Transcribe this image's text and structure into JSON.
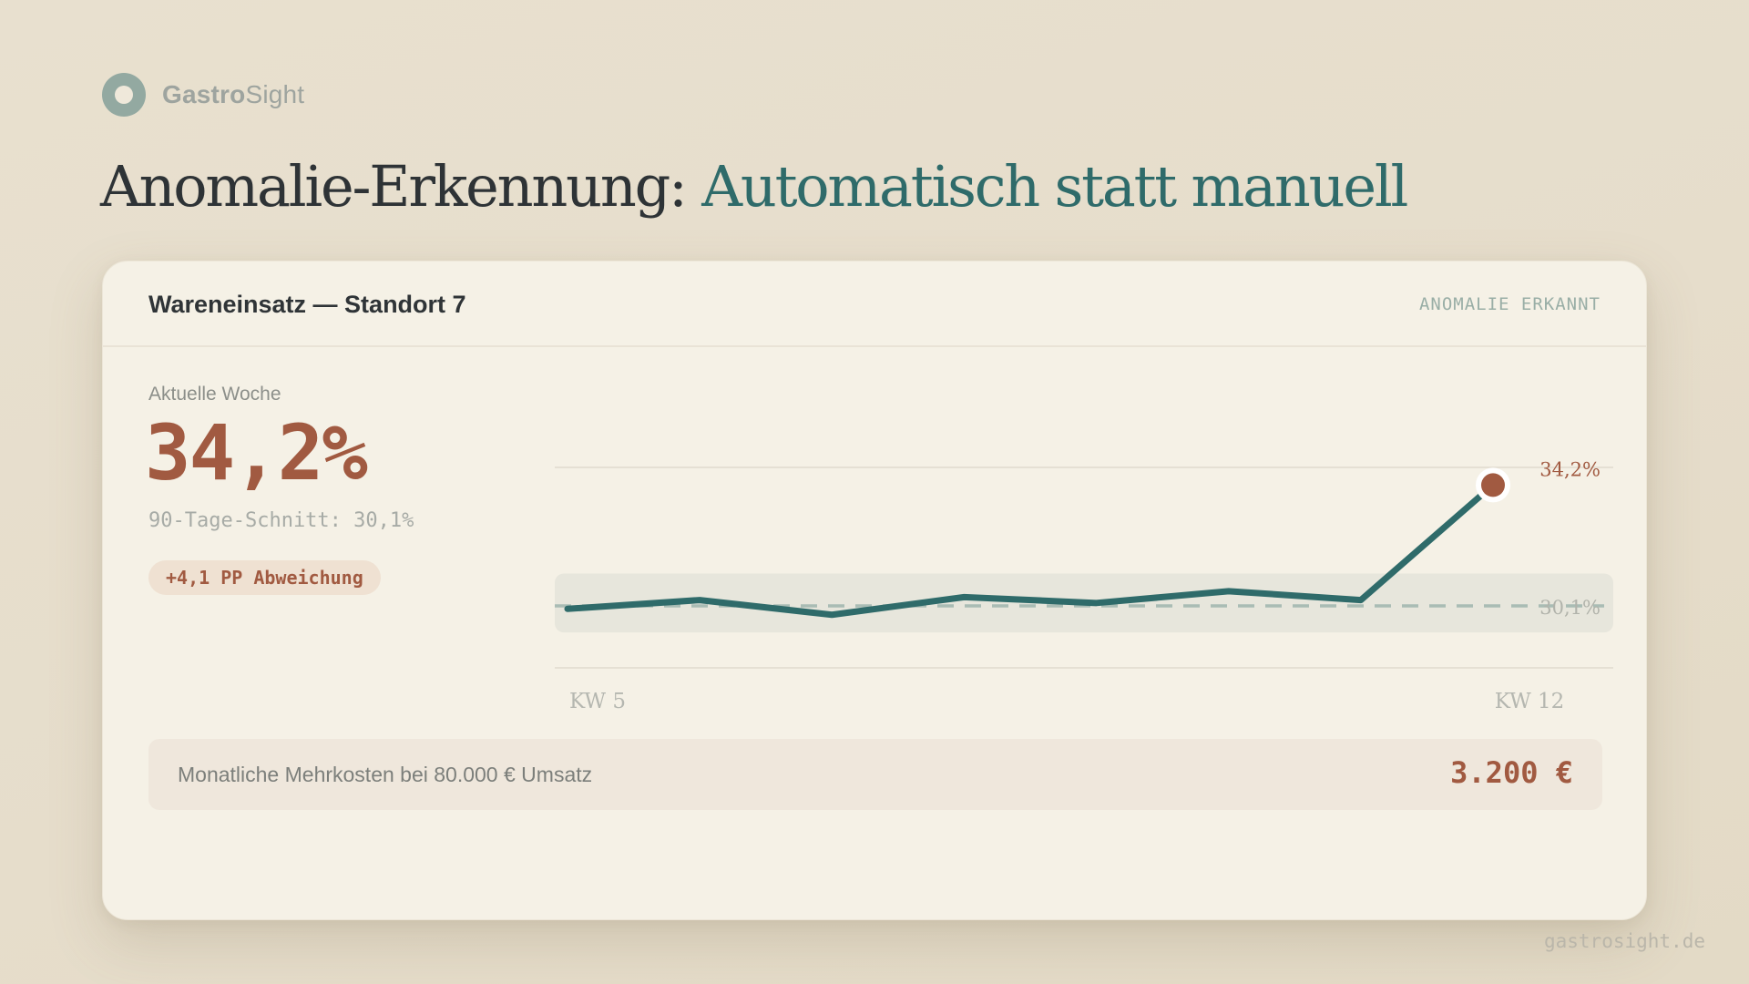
{
  "brand": {
    "name_bold": "Gastro",
    "name_regular": "Sight",
    "logo_icon": "ring-logo-icon"
  },
  "headline": {
    "prefix": "Anomalie-Erkennung: ",
    "accent": "Automatisch statt manuell"
  },
  "card": {
    "title": "Wareneinsatz — Standort 7",
    "status": "ANOMALIE ERKANNT",
    "metric": {
      "label": "Aktuelle Woche",
      "value": "34,2%",
      "average": "90-Tage-Schnitt: 30,1%",
      "deviation": "+4,1 PP Abweichung"
    },
    "cost": {
      "label": "Monatliche Mehrkosten bei 80.000 € Umsatz",
      "value": "3.200 €"
    }
  },
  "chart_data": {
    "type": "line",
    "x_labels": [
      "KW 5",
      "KW 12"
    ],
    "x": [
      5,
      6,
      7,
      8,
      9,
      10,
      11,
      12
    ],
    "values": [
      30.0,
      30.3,
      29.8,
      30.4,
      30.2,
      30.6,
      30.3,
      34.2
    ],
    "baseline": {
      "value": 30.1,
      "label": "30,1%"
    },
    "highlight": {
      "x": 12,
      "value": 34.2,
      "label": "34,2%"
    },
    "normal_band": [
      29.2,
      31.2
    ],
    "ylim": [
      28.0,
      34.8
    ],
    "grid": true,
    "colors": {
      "line": "#2f6b6a",
      "baseline": "#a9bcb4",
      "band": "#e7e6dc",
      "highlight": "#a15a41",
      "baseline_label": "#b1b3ab",
      "grid": "#e5e0d4"
    }
  },
  "footer": {
    "url": "gastrosight.de"
  }
}
